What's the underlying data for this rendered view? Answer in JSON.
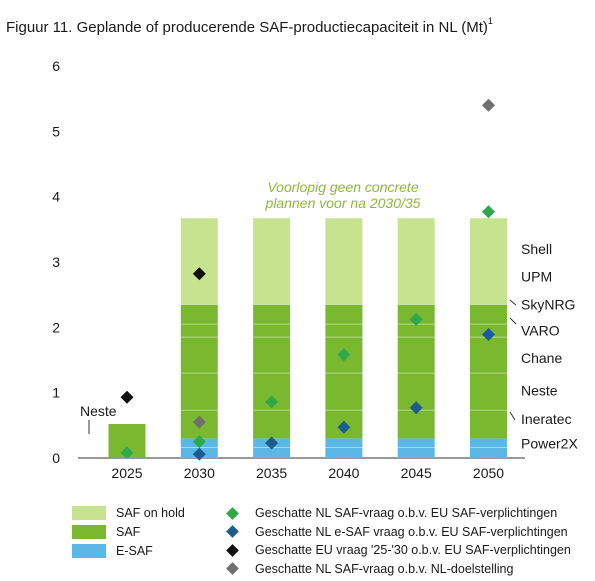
{
  "figure": {
    "title": "Figuur 11. Geplande of producerende SAF-productiecapaciteit in NL (Mt)",
    "title_sup": "1"
  },
  "chart_data": {
    "type": "bar",
    "stacked": true,
    "categories": [
      "2025",
      "2030",
      "2035",
      "2040",
      "2045",
      "2050"
    ],
    "ylim": [
      0,
      6
    ],
    "yticks": [
      "0",
      "1",
      "2",
      "3",
      "4",
      "5",
      "6"
    ],
    "grid": false,
    "legend_position": "bottom",
    "series": [
      {
        "name": "E-SAF",
        "color": "#5bb8e6",
        "values": [
          0,
          0.3,
          0.3,
          0.3,
          0.3,
          0.3
        ]
      },
      {
        "name": "SAF",
        "color": "#7ab82f",
        "values": [
          0.52,
          2.05,
          2.05,
          2.05,
          2.05,
          2.05
        ]
      },
      {
        "name": "SAF on hold",
        "color": "#c8e38f",
        "values": [
          0,
          1.32,
          1.32,
          1.32,
          1.32,
          1.32
        ]
      }
    ],
    "markers": [
      {
        "name": "Geschatte NL SAF-vraag o.b.v. EU SAF-verplichtingen",
        "color": "#2fa84a",
        "values": [
          0.08,
          0.25,
          0.86,
          1.58,
          2.12,
          3.77
        ]
      },
      {
        "name": "Geschatte NL e-SAF vraag o.b.v. EU SAF-verplichtingen",
        "color": "#1d5c8c",
        "values": [
          null,
          0.06,
          0.23,
          0.47,
          0.77,
          1.89
        ]
      },
      {
        "name": "Geschatte EU vraag '25-'30 o.b.v. EU SAF-verplichtingen",
        "color": "#111111",
        "values": [
          0.93,
          2.82,
          null,
          null,
          null,
          null
        ]
      },
      {
        "name": "Geschatte NL SAF-vraag o.b.v. NL-doelstelling",
        "color": "#6f6f6f",
        "values": [
          null,
          0.55,
          null,
          null,
          null,
          5.4
        ]
      }
    ],
    "segment_labels": [
      {
        "text": "Shell",
        "y": 3.2
      },
      {
        "text": "UPM",
        "y": 2.78
      },
      {
        "text": "SkyNRG",
        "y": 2.35
      },
      {
        "text": "VARO",
        "y": 1.95
      },
      {
        "text": "Chane",
        "y": 1.53
      },
      {
        "text": "Neste",
        "y": 1.03
      },
      {
        "text": "Ineratec",
        "y": 0.6
      },
      {
        "text": "Power2X",
        "y": 0.22
      }
    ],
    "annotation_2025": "Neste",
    "note": [
      "Voorlopig geen concrete",
      "plannen voor na 2030/35"
    ]
  }
}
